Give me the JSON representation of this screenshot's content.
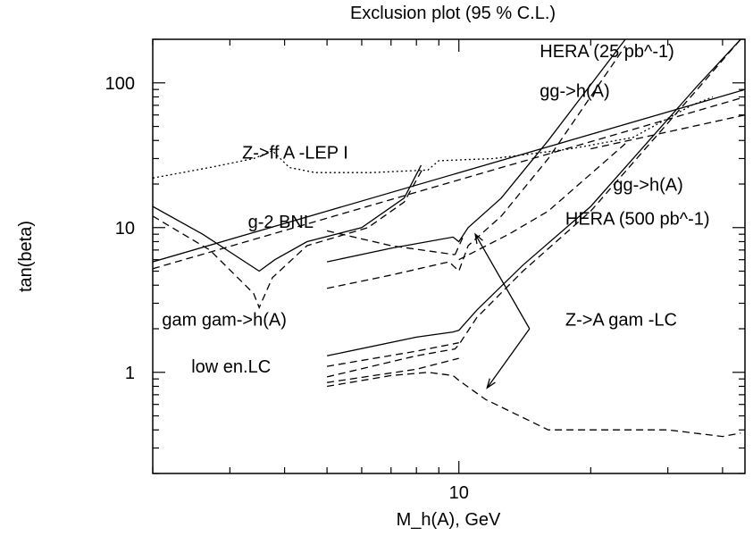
{
  "chart_data": {
    "type": "line",
    "title": "Exclusion plot (95 % C.L.)",
    "xlabel": "M_h(A),  GeV",
    "ylabel": "tan(beta)",
    "xscale": "log",
    "yscale": "log",
    "xlim": [
      2,
      45
    ],
    "ylim": [
      0.2,
      200
    ],
    "x_ticks_labeled": [
      10
    ],
    "x_tick_labels": [
      "10"
    ],
    "y_ticks_labeled": [
      1,
      10,
      100
    ],
    "y_tick_labels": [
      "1",
      "10",
      "100"
    ],
    "grid": false,
    "annotations": [
      {
        "text": "HERA (25 pb^-1)",
        "x": 15.3,
        "y": 150
      },
      {
        "text": "gg->h(A)",
        "x": 15.3,
        "y": 80
      },
      {
        "text": "Z->ff A -LEP I",
        "x": 3.2,
        "y": 30
      },
      {
        "text": "gg->h(A)",
        "x": 22.5,
        "y": 18
      },
      {
        "text": "HERA (500 pb^-1)",
        "x": 17.5,
        "y": 10.5
      },
      {
        "text": "g-2 BNL",
        "x": 3.3,
        "y": 10
      },
      {
        "text": "gam gam->h(A)",
        "x": 2.1,
        "y": 2.1
      },
      {
        "text": "Z->A gam -LC",
        "x": 17.5,
        "y": 2.1
      },
      {
        "text": "low en.LC",
        "x": 2.45,
        "y": 1.0
      }
    ],
    "series": [
      {
        "style": "dotted",
        "x": [
          2,
          2.7,
          3.4,
          3.75,
          4.1,
          4.7,
          6.3,
          8.5,
          9.0,
          12,
          18,
          25,
          34,
          38
        ],
        "y": [
          22,
          26,
          30,
          34,
          26,
          24,
          24,
          25,
          29,
          30,
          35,
          42,
          70,
          80
        ]
      },
      {
        "style": "solid",
        "x": [
          2,
          45
        ],
        "y": [
          5.8,
          90
        ]
      },
      {
        "style": "dashed",
        "x": [
          2,
          45
        ],
        "y": [
          5.2,
          80
        ]
      },
      {
        "style": "dashed",
        "x": [
          20,
          45
        ],
        "y": [
          35,
          60
        ]
      },
      {
        "style": "solid",
        "x": [
          2,
          2.6,
          3.5,
          3.8,
          4.5,
          6.0,
          7.5,
          8.2
        ],
        "y": [
          14,
          9,
          5.0,
          6.0,
          8.0,
          10,
          16,
          27
        ]
      },
      {
        "style": "dashed",
        "x": [
          2,
          2.7,
          3.4,
          3.5,
          3.75,
          4.5,
          6.2,
          7.5,
          8.3
        ],
        "y": [
          12,
          7,
          3.5,
          2.8,
          4.5,
          7.5,
          10,
          15,
          26
        ]
      },
      {
        "style": "solid",
        "x": [
          5,
          7,
          9.7,
          10,
          10.5,
          12.5,
          16,
          24
        ],
        "y": [
          5.8,
          7.2,
          8.6,
          8.0,
          10,
          16,
          40,
          200
        ]
      },
      {
        "style": "dashed",
        "x": [
          5,
          7,
          9.5,
          10,
          10.5,
          12.5,
          16,
          24
        ],
        "y": [
          3.8,
          4.7,
          5.8,
          5.0,
          7.5,
          12,
          30,
          180
        ]
      },
      {
        "style": "dashed",
        "x": [
          10,
          13,
          16,
          24
        ],
        "y": [
          6.0,
          9.0,
          13,
          38
        ]
      },
      {
        "style": "solid",
        "x": [
          5,
          8,
          9.7,
          10,
          11,
          14,
          20,
          35,
          44
        ],
        "y": [
          1.3,
          1.75,
          1.9,
          1.95,
          2.7,
          5.5,
          14,
          95,
          200
        ]
      },
      {
        "style": "dashed",
        "x": [
          5,
          8,
          9.8,
          10,
          11,
          14,
          20,
          35,
          44
        ],
        "y": [
          0.93,
          1.3,
          1.45,
          1.55,
          2.4,
          5,
          13,
          90,
          200
        ]
      },
      {
        "style": "dashed",
        "x": [
          5,
          7,
          8.5,
          9.7,
          10,
          11.5,
          16,
          30,
          40,
          44
        ],
        "y": [
          0.8,
          0.95,
          1.0,
          0.95,
          0.88,
          0.65,
          0.4,
          0.4,
          0.36,
          0.38
        ]
      },
      {
        "style": "dashed",
        "x": [
          5,
          8,
          10
        ],
        "y": [
          1.1,
          1.4,
          1.6
        ]
      },
      {
        "style": "dashed",
        "x": [
          5,
          8,
          10
        ],
        "y": [
          0.85,
          1.05,
          1.25
        ]
      },
      {
        "style": "dashed",
        "x": [
          5.0,
          7,
          9.8
        ],
        "y": [
          9.5,
          7.5,
          6.5
        ]
      },
      {
        "style": "dashed",
        "x": [
          9.8,
          10.2
        ],
        "y": [
          6.5,
          8.5
        ]
      }
    ],
    "arrows": [
      {
        "from": [
          14.5,
          2.0
        ],
        "to": [
          10.9,
          9.0
        ]
      },
      {
        "from": [
          14.5,
          2.0
        ],
        "to": [
          11.6,
          0.78
        ]
      }
    ]
  }
}
